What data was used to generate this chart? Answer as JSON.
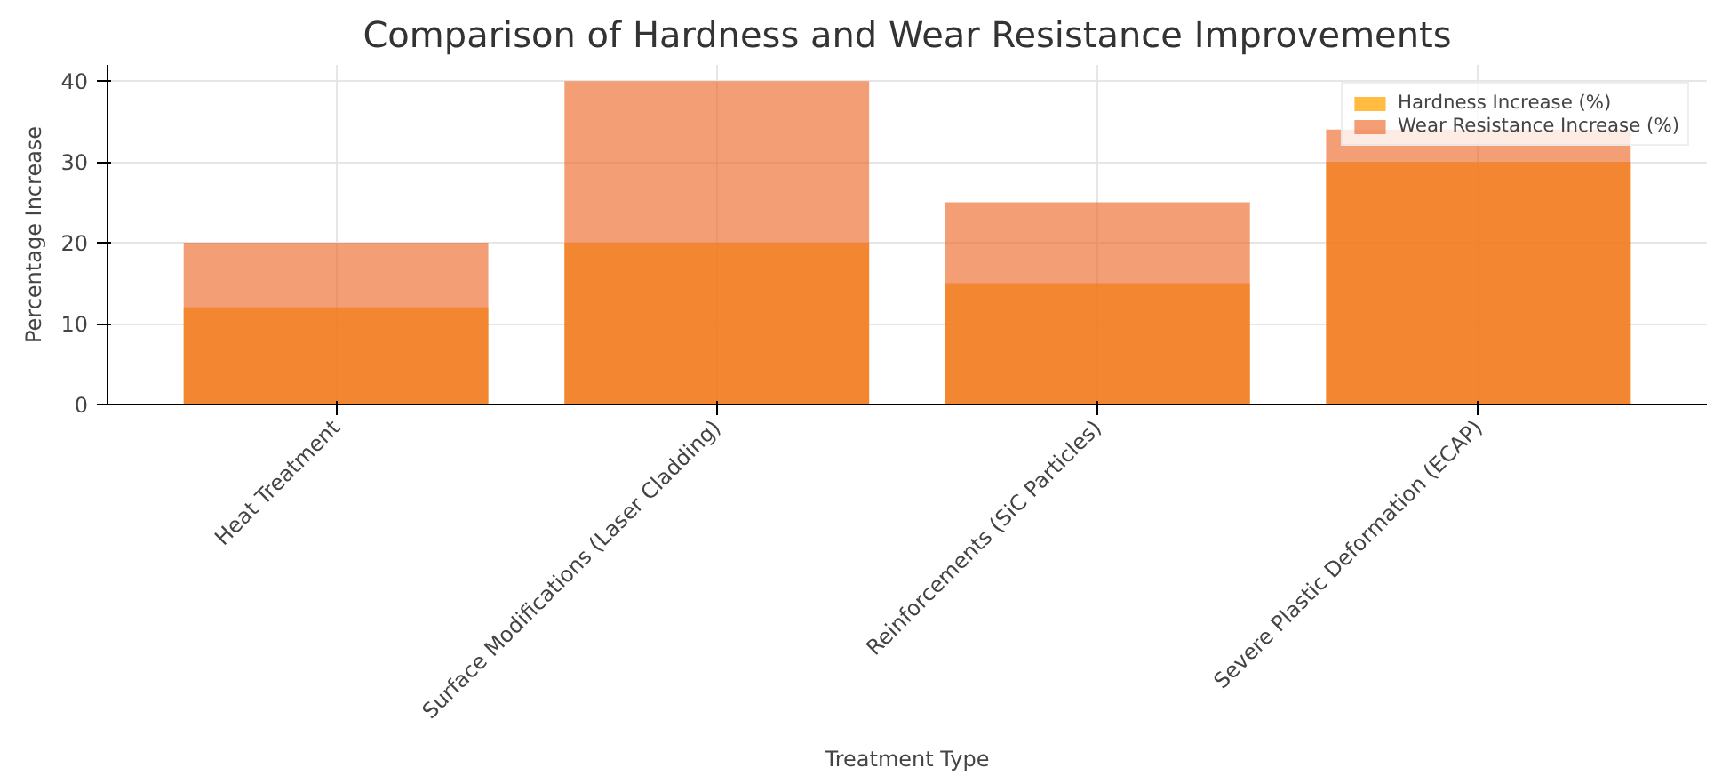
{
  "chart_data": {
    "type": "bar",
    "title": "Comparison of Hardness and Wear Resistance Improvements",
    "xlabel": "Treatment Type",
    "ylabel": "Percentage Increase",
    "categories": [
      "Heat Treatment",
      "Surface Modifications (Laser Cladding)",
      "Reinforcements (SiC Particles)",
      "Severe Plastic Deformation (ECAP)"
    ],
    "series": [
      {
        "name": "Hardness Increase (%)",
        "color": "#ffa500",
        "values": [
          12,
          20,
          15,
          30
        ]
      },
      {
        "name": "Wear Resistance Increase (%)",
        "color": "#ec6a2a",
        "values": [
          20,
          40,
          25,
          34
        ]
      }
    ],
    "ylim": [
      0,
      42
    ],
    "yticks": [
      0,
      10,
      20,
      30,
      40
    ],
    "grid": true,
    "legend": "top right"
  }
}
